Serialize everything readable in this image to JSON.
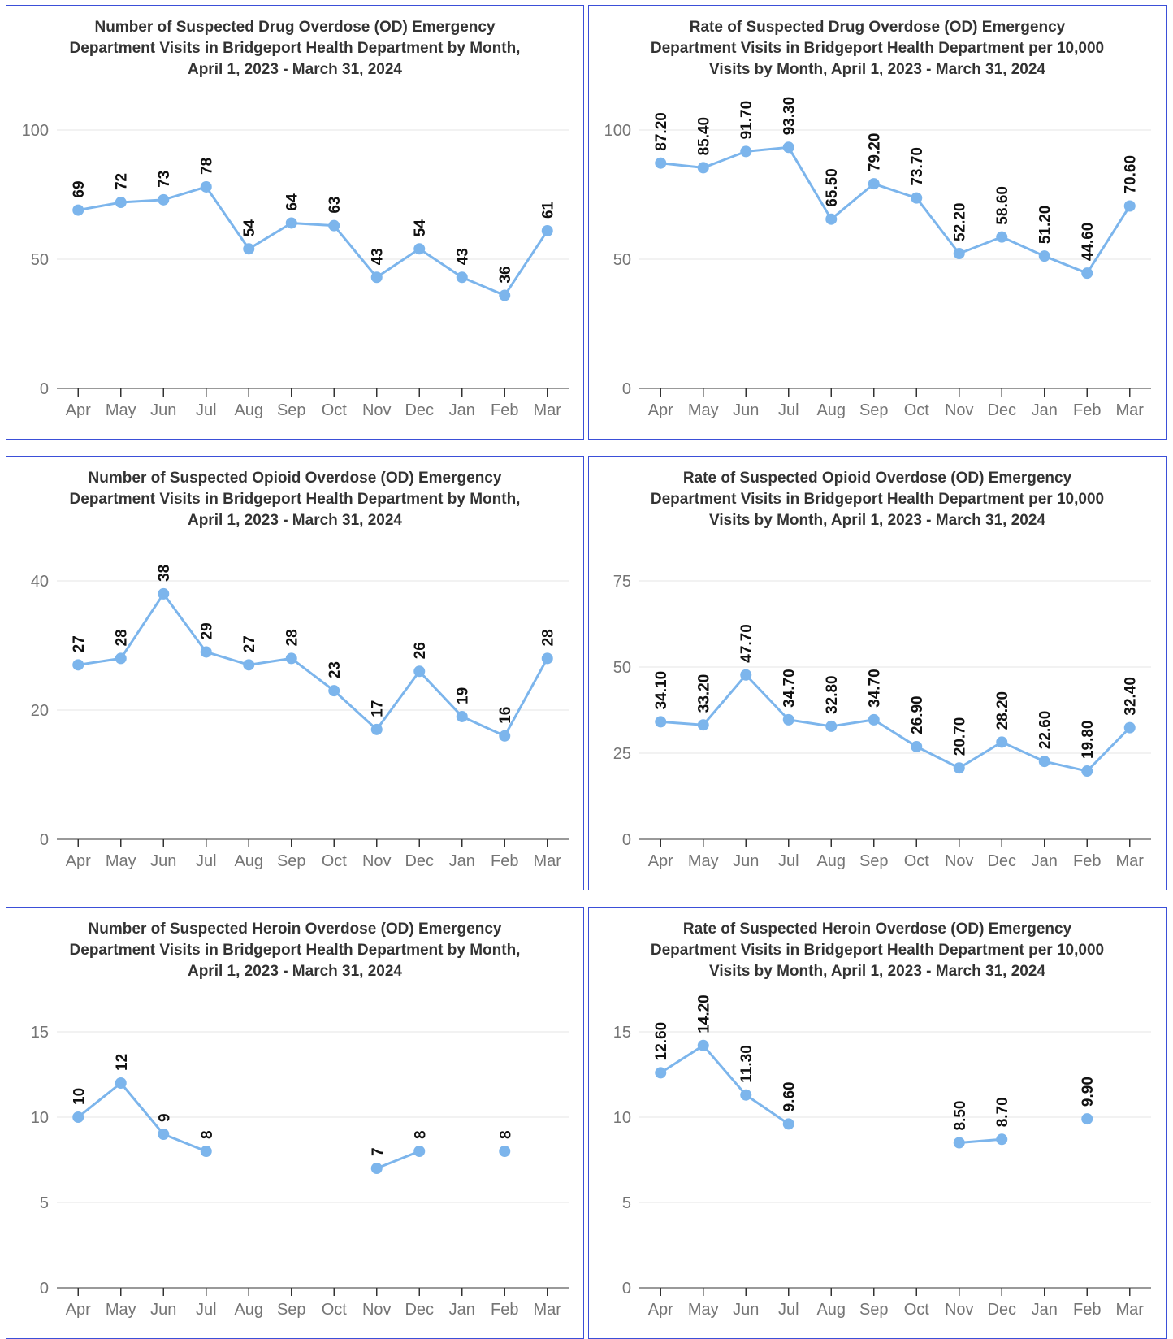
{
  "colors": {
    "series": "#7cb5ec",
    "border": "#3b4fd8",
    "grid": "#e6e6e6",
    "axis": "#333333"
  },
  "chart_data": [
    {
      "type": "line",
      "title": [
        "Number of Suspected Drug Overdose (OD) Emergency",
        "Department Visits in Bridgeport Health Department by Month,",
        "April 1, 2023 - March 31, 2024"
      ],
      "categories": [
        "Apr",
        "May",
        "Jun",
        "Jul",
        "Aug",
        "Sep",
        "Oct",
        "Nov",
        "Dec",
        "Jan",
        "Feb",
        "Mar"
      ],
      "values": [
        69,
        72,
        73,
        78,
        54,
        64,
        63,
        43,
        54,
        43,
        36,
        61
      ],
      "value_labels": [
        "69",
        "72",
        "73",
        "78",
        "54",
        "64",
        "63",
        "43",
        "54",
        "43",
        "36",
        "61"
      ],
      "ylim": [
        0,
        100
      ],
      "yticks": [
        "0",
        "50",
        "100"
      ],
      "grid": true
    },
    {
      "type": "line",
      "title": [
        "Rate of Suspected Drug Overdose (OD) Emergency",
        "Department Visits in Bridgeport Health Department per 10,000",
        "Visits by Month, April 1, 2023 - March 31, 2024"
      ],
      "categories": [
        "Apr",
        "May",
        "Jun",
        "Jul",
        "Aug",
        "Sep",
        "Oct",
        "Nov",
        "Dec",
        "Jan",
        "Feb",
        "Mar"
      ],
      "values": [
        87.2,
        85.4,
        91.7,
        93.3,
        65.5,
        79.2,
        73.7,
        52.2,
        58.6,
        51.2,
        44.6,
        70.6
      ],
      "value_labels": [
        "87.20",
        "85.40",
        "91.70",
        "93.30",
        "65.50",
        "79.20",
        "73.70",
        "52.20",
        "58.60",
        "51.20",
        "44.60",
        "70.60"
      ],
      "ylim": [
        0,
        100
      ],
      "yticks": [
        "0",
        "50",
        "100"
      ],
      "grid": true
    },
    {
      "type": "line",
      "title": [
        "Number of Suspected Opioid Overdose (OD) Emergency",
        "Department Visits in Bridgeport Health Department by Month,",
        "April 1, 2023 - March 31, 2024"
      ],
      "categories": [
        "Apr",
        "May",
        "Jun",
        "Jul",
        "Aug",
        "Sep",
        "Oct",
        "Nov",
        "Dec",
        "Jan",
        "Feb",
        "Mar"
      ],
      "values": [
        27,
        28,
        38,
        29,
        27,
        28,
        23,
        17,
        26,
        19,
        16,
        28
      ],
      "value_labels": [
        "27",
        "28",
        "38",
        "29",
        "27",
        "28",
        "23",
        "17",
        "26",
        "19",
        "16",
        "28"
      ],
      "ylim": [
        0,
        40
      ],
      "yticks": [
        "0",
        "20",
        "40"
      ],
      "grid": true
    },
    {
      "type": "line",
      "title": [
        "Rate of Suspected Opioid Overdose (OD) Emergency",
        "Department Visits in Bridgeport Health Department per 10,000",
        "Visits by Month, April 1, 2023 - March 31, 2024"
      ],
      "categories": [
        "Apr",
        "May",
        "Jun",
        "Jul",
        "Aug",
        "Sep",
        "Oct",
        "Nov",
        "Dec",
        "Jan",
        "Feb",
        "Mar"
      ],
      "values": [
        34.1,
        33.2,
        47.7,
        34.7,
        32.8,
        34.7,
        26.9,
        20.7,
        28.2,
        22.6,
        19.8,
        32.4
      ],
      "value_labels": [
        "34.10",
        "33.20",
        "47.70",
        "34.70",
        "32.80",
        "34.70",
        "26.90",
        "20.70",
        "28.20",
        "22.60",
        "19.80",
        "32.40"
      ],
      "ylim": [
        0,
        75
      ],
      "yticks": [
        "0",
        "25",
        "50",
        "75"
      ],
      "grid": true
    },
    {
      "type": "line",
      "title": [
        "Number of Suspected Heroin Overdose (OD) Emergency",
        "Department Visits in Bridgeport Health Department by Month,",
        "April 1, 2023 - March 31, 2024"
      ],
      "categories": [
        "Apr",
        "May",
        "Jun",
        "Jul",
        "Aug",
        "Sep",
        "Oct",
        "Nov",
        "Dec",
        "Jan",
        "Feb",
        "Mar"
      ],
      "values": [
        10,
        12,
        9,
        8,
        null,
        null,
        null,
        7,
        8,
        null,
        8,
        null
      ],
      "value_labels": [
        "10",
        "12",
        "9",
        "8",
        "",
        "",
        "",
        "7",
        "8",
        "",
        "8",
        ""
      ],
      "ylim": [
        0,
        15
      ],
      "yticks": [
        "0",
        "5",
        "10",
        "15"
      ],
      "grid": true
    },
    {
      "type": "line",
      "title": [
        "Rate of Suspected Heroin Overdose (OD) Emergency",
        "Department Visits in Bridgeport Health Department per 10,000",
        "Visits by Month, April 1, 2023 - March 31, 2024"
      ],
      "categories": [
        "Apr",
        "May",
        "Jun",
        "Jul",
        "Aug",
        "Sep",
        "Oct",
        "Nov",
        "Dec",
        "Jan",
        "Feb",
        "Mar"
      ],
      "values": [
        12.6,
        14.2,
        11.3,
        9.6,
        null,
        null,
        null,
        8.5,
        8.7,
        null,
        9.9,
        null
      ],
      "value_labels": [
        "12.60",
        "14.20",
        "11.30",
        "9.60",
        "",
        "",
        "",
        "8.50",
        "8.70",
        "",
        "9.90",
        ""
      ],
      "ylim": [
        0,
        15
      ],
      "yticks": [
        "0",
        "5",
        "10",
        "15"
      ],
      "grid": true
    }
  ]
}
